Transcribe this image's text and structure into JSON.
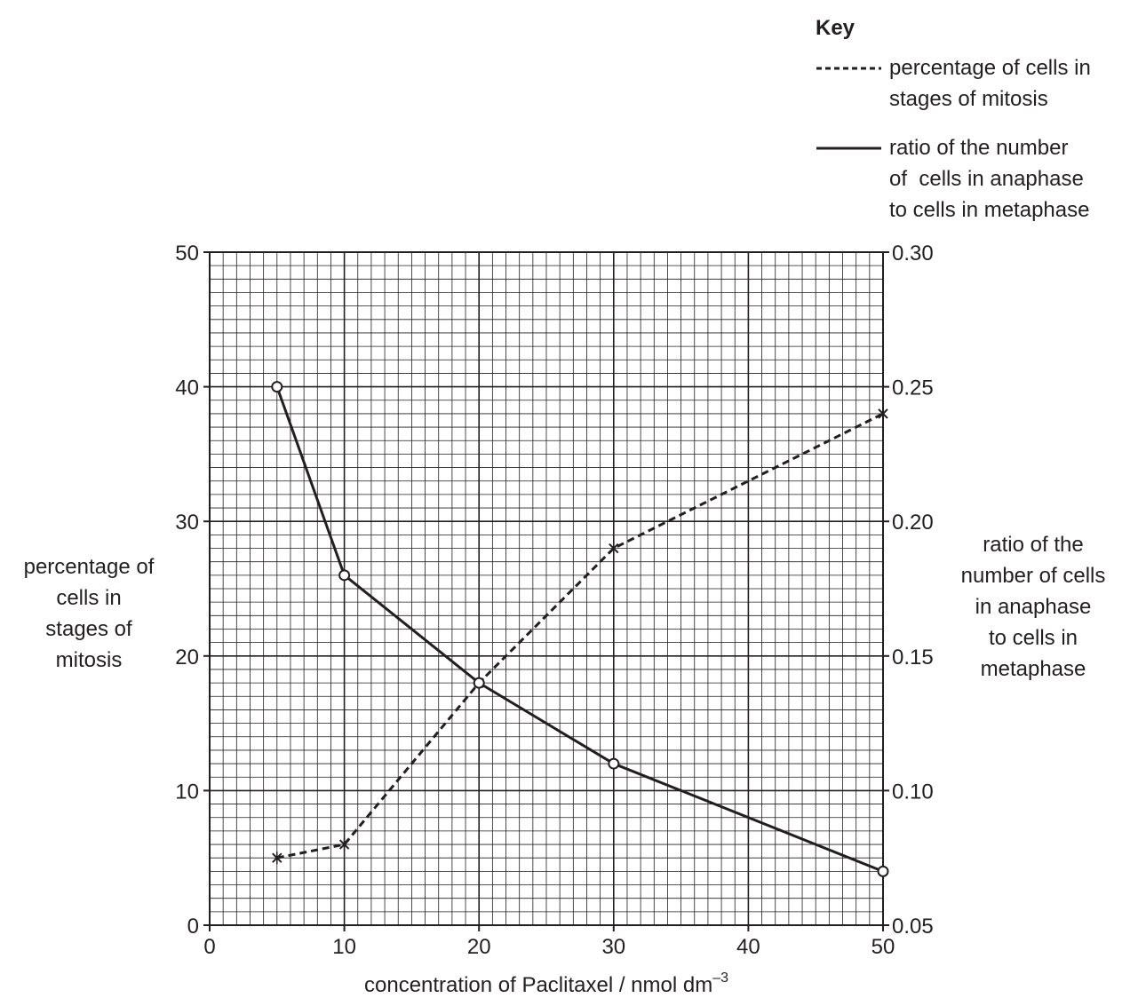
{
  "chart_data": {
    "type": "line",
    "xlabel": "concentration of Paclitaxel / nmol dm",
    "xlabel_superscript": "–3",
    "ylabel_left": [
      "percentage of",
      "cells in",
      "stages of",
      "mitosis"
    ],
    "ylabel_right": [
      "ratio of the",
      "number of cells",
      "in anaphase",
      "to cells in",
      "metaphase"
    ],
    "xlim": [
      0,
      50
    ],
    "ylim_left": [
      0,
      50
    ],
    "ylim_right": [
      0.05,
      0.3
    ],
    "x_ticks": [
      "0",
      "10",
      "20",
      "30",
      "40",
      "50"
    ],
    "y_ticks_left": [
      "0",
      "10",
      "20",
      "30",
      "40",
      "50"
    ],
    "y_ticks_right": [
      "0.05",
      "0.10",
      "0.15",
      "0.20",
      "0.25",
      "0.30"
    ],
    "grid": true,
    "legend": {
      "title": "Key",
      "position": "top-right",
      "entries": [
        {
          "style": "dashed",
          "lines": [
            "percentage of cells in",
            "stages of mitosis"
          ]
        },
        {
          "style": "solid",
          "lines": [
            "ratio of the number",
            "of  cells in anaphase",
            "to cells in metaphase"
          ]
        }
      ]
    },
    "series": [
      {
        "axis": "left",
        "style": "dashed",
        "marker": "cross",
        "x": [
          5,
          10,
          20,
          30,
          50
        ],
        "values": [
          5,
          6,
          18,
          28,
          38
        ]
      },
      {
        "axis": "right",
        "style": "solid",
        "marker": "circle",
        "x": [
          5,
          10,
          20,
          30,
          50
        ],
        "values": [
          0.25,
          0.18,
          0.14,
          0.11,
          0.07
        ]
      }
    ]
  }
}
